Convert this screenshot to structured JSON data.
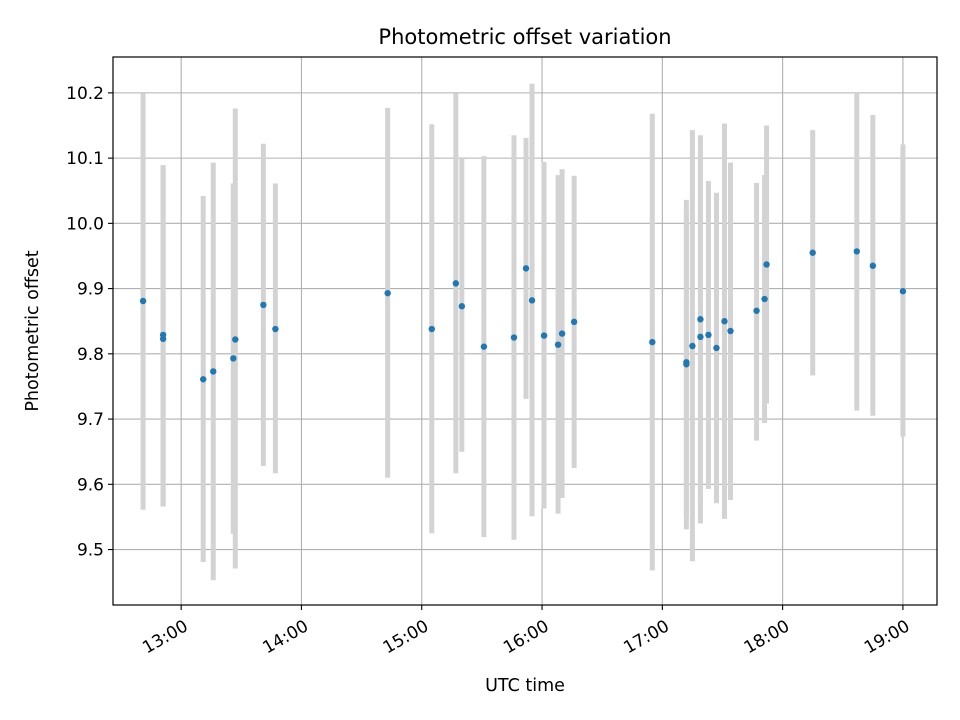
{
  "chart_data": {
    "type": "scatter",
    "title": "Photometric offset variation",
    "xlabel": "UTC time",
    "ylabel": "Photometric offset",
    "x_unit": "HH:MM UTC",
    "xlim": [
      "12:26",
      "19:17"
    ],
    "ylim": [
      9.415,
      10.255
    ],
    "x_ticks": [
      "13:00",
      "14:00",
      "15:00",
      "16:00",
      "17:00",
      "18:00",
      "19:00"
    ],
    "y_ticks": [
      9.5,
      9.6,
      9.7,
      9.8,
      9.9,
      10.0,
      10.1,
      10.2
    ],
    "y_tick_labels": [
      "9.5",
      "9.6",
      "9.7",
      "9.8",
      "9.9",
      "10.0",
      "10.1",
      "10.2"
    ],
    "grid": true,
    "marker_color": "#1f77b4",
    "errorbar_color": "#d3d3d3",
    "points": [
      {
        "x": "12:41",
        "y": 9.881,
        "lo": 9.561,
        "hi": 10.199
      },
      {
        "x": "12:51",
        "y": 9.823,
        "lo": 9.566,
        "hi": 10.089
      },
      {
        "x": "12:51",
        "y": 9.829,
        "lo": 9.566,
        "hi": 10.089
      },
      {
        "x": "13:11",
        "y": 9.761,
        "lo": 9.481,
        "hi": 10.042
      },
      {
        "x": "13:16",
        "y": 9.773,
        "lo": 9.453,
        "hi": 10.093
      },
      {
        "x": "13:26",
        "y": 9.793,
        "lo": 9.524,
        "hi": 10.061
      },
      {
        "x": "13:27",
        "y": 9.822,
        "lo": 9.471,
        "hi": 10.176
      },
      {
        "x": "13:41",
        "y": 9.875,
        "lo": 9.628,
        "hi": 10.122
      },
      {
        "x": "13:47",
        "y": 9.838,
        "lo": 9.617,
        "hi": 10.061
      },
      {
        "x": "14:43",
        "y": 9.893,
        "lo": 9.61,
        "hi": 10.177
      },
      {
        "x": "15:05",
        "y": 9.838,
        "lo": 9.525,
        "hi": 10.152
      },
      {
        "x": "15:17",
        "y": 9.908,
        "lo": 9.617,
        "hi": 10.199
      },
      {
        "x": "15:20",
        "y": 9.873,
        "lo": 9.65,
        "hi": 10.1
      },
      {
        "x": "15:31",
        "y": 9.811,
        "lo": 9.519,
        "hi": 10.103
      },
      {
        "x": "15:46",
        "y": 9.825,
        "lo": 9.515,
        "hi": 10.135
      },
      {
        "x": "15:52",
        "y": 9.931,
        "lo": 9.731,
        "hi": 10.131
      },
      {
        "x": "15:55",
        "y": 9.882,
        "lo": 9.551,
        "hi": 10.214
      },
      {
        "x": "16:01",
        "y": 9.828,
        "lo": 9.563,
        "hi": 10.094
      },
      {
        "x": "16:08",
        "y": 9.814,
        "lo": 9.555,
        "hi": 10.074
      },
      {
        "x": "16:10",
        "y": 9.831,
        "lo": 9.579,
        "hi": 10.083
      },
      {
        "x": "16:16",
        "y": 9.849,
        "lo": 9.625,
        "hi": 10.073
      },
      {
        "x": "16:55",
        "y": 9.818,
        "lo": 9.468,
        "hi": 10.168
      },
      {
        "x": "17:12",
        "y": 9.784,
        "lo": 9.531,
        "hi": 10.036
      },
      {
        "x": "17:12",
        "y": 9.787,
        "lo": 9.55,
        "hi": 10.02
      },
      {
        "x": "17:15",
        "y": 9.812,
        "lo": 9.482,
        "hi": 10.143
      },
      {
        "x": "17:19",
        "y": 9.853,
        "lo": 9.573,
        "hi": 10.135
      },
      {
        "x": "17:19",
        "y": 9.826,
        "lo": 9.54,
        "hi": 10.113
      },
      {
        "x": "17:23",
        "y": 9.829,
        "lo": 9.593,
        "hi": 10.065
      },
      {
        "x": "17:27",
        "y": 9.809,
        "lo": 9.571,
        "hi": 10.047
      },
      {
        "x": "17:31",
        "y": 9.85,
        "lo": 9.547,
        "hi": 10.153
      },
      {
        "x": "17:34",
        "y": 9.835,
        "lo": 9.576,
        "hi": 10.093
      },
      {
        "x": "17:47",
        "y": 9.866,
        "lo": 9.667,
        "hi": 10.062
      },
      {
        "x": "17:51",
        "y": 9.884,
        "lo": 9.694,
        "hi": 10.074
      },
      {
        "x": "17:52",
        "y": 9.937,
        "lo": 9.724,
        "hi": 10.15
      },
      {
        "x": "18:15",
        "y": 9.955,
        "lo": 9.767,
        "hi": 10.143
      },
      {
        "x": "18:37",
        "y": 9.957,
        "lo": 9.713,
        "hi": 10.2
      },
      {
        "x": "18:45",
        "y": 9.935,
        "lo": 9.705,
        "hi": 10.166
      },
      {
        "x": "19:00",
        "y": 9.896,
        "lo": 9.673,
        "hi": 10.121
      }
    ]
  }
}
